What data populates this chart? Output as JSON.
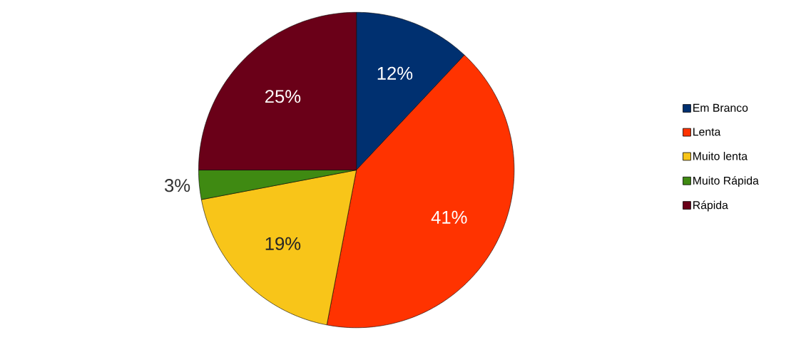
{
  "chart_data": {
    "type": "pie",
    "categories": [
      "Em Branco",
      "Lenta",
      "Muito lenta",
      "Muito Rápida",
      "Rápida"
    ],
    "values": [
      12,
      41,
      19,
      3,
      25
    ],
    "colors": [
      "#003070",
      "#ff3300",
      "#f8c519",
      "#3f8a12",
      "#6a0018"
    ],
    "value_labels": [
      "12%",
      "41%",
      "19%",
      "3%",
      "25%"
    ],
    "legend": "right"
  }
}
